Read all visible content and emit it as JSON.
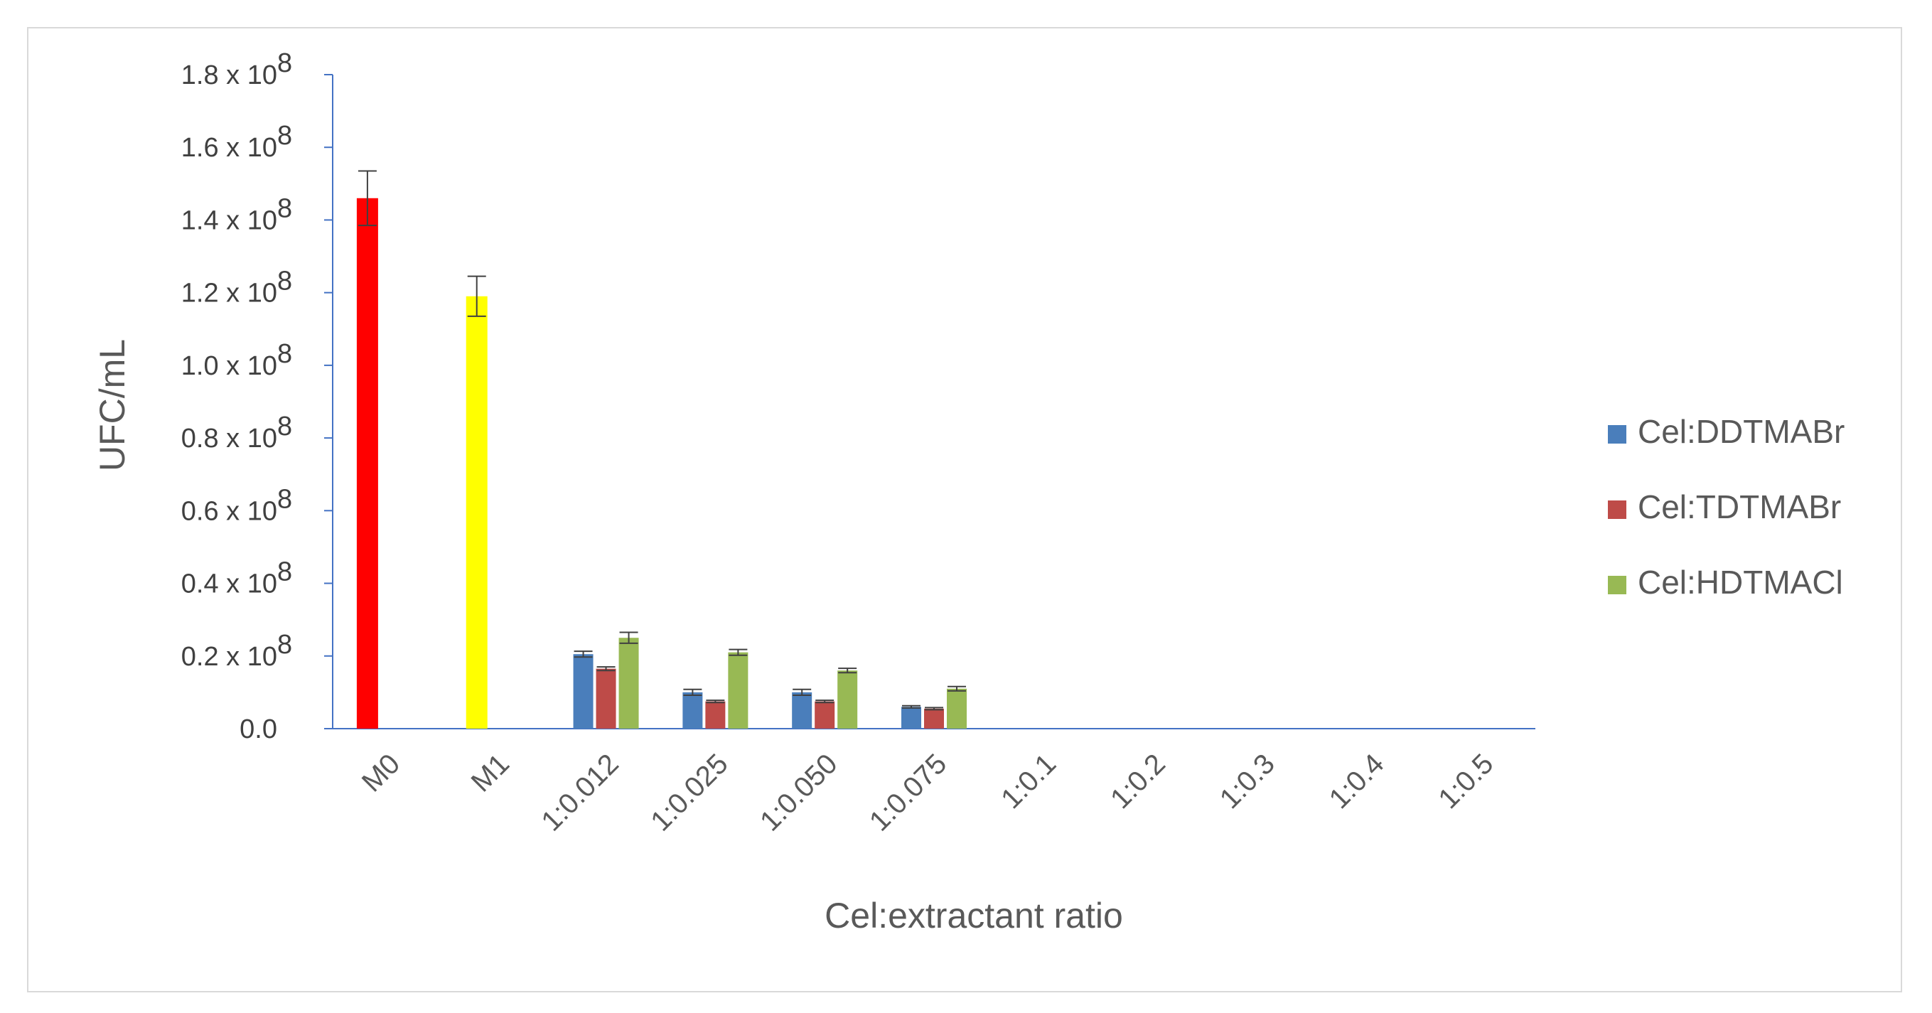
{
  "chart_data": {
    "type": "bar",
    "xlabel": "Cel:extractant ratio",
    "ylabel": "UFC/mL",
    "ylim": [
      0,
      1.8
    ],
    "y_unit_multiplier": "x 10^8",
    "y_ticks": [
      0.0,
      0.2,
      0.4,
      0.6,
      0.8,
      1.0,
      1.2,
      1.4,
      1.6,
      1.8
    ],
    "y_tick_labels": {
      "zero": "0.0",
      "mantissas": [
        "0.2",
        "0.4",
        "0.6",
        "0.8",
        "1.0",
        "1.2",
        "1.4",
        "1.6",
        "1.8"
      ],
      "base": "x 10",
      "exponent": "8"
    },
    "categories": [
      "M0",
      "M1",
      "1:0.012",
      "1:0.025",
      "1:0.050",
      "1:0.075",
      "1:0.1",
      "1:0.2",
      "1:0.3",
      "1:0.4",
      "1:0.5"
    ],
    "controls": [
      {
        "category": "M0",
        "value": 1.46,
        "error": 0.075,
        "color": "#ff0000"
      },
      {
        "category": "M1",
        "value": 1.19,
        "error": 0.055,
        "color": "#ffff00"
      }
    ],
    "series": [
      {
        "name": "Cel:DDTMABr",
        "color": "#4a7ebb",
        "values": [
          null,
          null,
          0.205,
          0.1,
          0.1,
          0.06,
          0,
          0,
          0,
          0,
          0
        ],
        "errors": [
          null,
          null,
          0.008,
          0.008,
          0.008,
          0.003,
          0,
          0,
          0,
          0,
          0
        ]
      },
      {
        "name": "Cel:TDTMABr",
        "color": "#be4b48",
        "values": [
          null,
          null,
          0.165,
          0.075,
          0.075,
          0.055,
          0,
          0,
          0,
          0,
          0
        ],
        "errors": [
          null,
          null,
          0.005,
          0.003,
          0.003,
          0.003,
          0,
          0,
          0,
          0,
          0
        ]
      },
      {
        "name": "Cel:HDTMACl",
        "color": "#98b954",
        "values": [
          null,
          null,
          0.25,
          0.21,
          0.16,
          0.11,
          0,
          0,
          0,
          0,
          0
        ],
        "errors": [
          null,
          null,
          0.015,
          0.008,
          0.006,
          0.006,
          0,
          0,
          0,
          0,
          0
        ]
      }
    ],
    "legend_position": "right",
    "grid": false
  },
  "colors": {
    "axis": "#4472c4",
    "error_bar": "#404040",
    "frame": "#d9d9d9"
  }
}
